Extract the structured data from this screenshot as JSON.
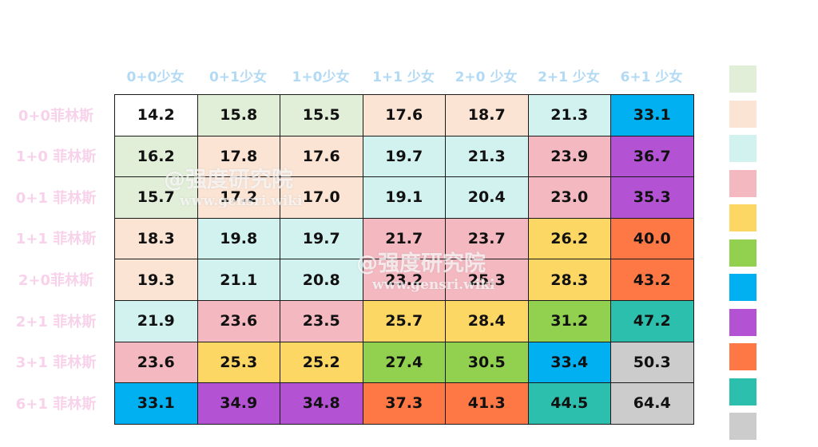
{
  "chart_data": {
    "type": "table",
    "columns": [
      "0+0少女",
      "0+1少女",
      "1+0少女",
      "1+1 少女",
      "2+0 少女",
      "2+1 少女",
      "6+1 少女"
    ],
    "rows": [
      "0+0菲林斯",
      "1+0 菲林斯",
      "0+1 菲林斯",
      "1+1  菲林斯",
      "2+0菲林斯",
      "2+1 菲林斯",
      "3+1 菲林斯",
      "6+1 菲林斯"
    ],
    "values": [
      [
        "14.2",
        "15.8",
        "15.5",
        "17.6",
        "18.7",
        "21.3",
        "33.1"
      ],
      [
        "16.2",
        "17.8",
        "17.6",
        "19.7",
        "21.3",
        "23.9",
        "36.7"
      ],
      [
        "15.7",
        "17.2",
        "17.0",
        "19.1",
        "20.4",
        "23.0",
        "35.3"
      ],
      [
        "18.3",
        "19.8",
        "19.7",
        "21.7",
        "23.7",
        "26.2",
        "40.0"
      ],
      [
        "19.3",
        "21.1",
        "20.8",
        "23.2",
        "25.3",
        "28.3",
        "43.2"
      ],
      [
        "21.9",
        "23.6",
        "23.5",
        "25.7",
        "28.4",
        "31.2",
        "47.2"
      ],
      [
        "23.6",
        "25.3",
        "25.2",
        "27.4",
        "30.5",
        "33.4",
        "50.3"
      ],
      [
        "33.1",
        "34.9",
        "34.8",
        "37.3",
        "41.3",
        "44.5",
        "64.4"
      ]
    ],
    "cell_color_index": [
      [
        -1,
        0,
        0,
        1,
        1,
        2,
        6
      ],
      [
        0,
        1,
        1,
        2,
        2,
        3,
        7
      ],
      [
        0,
        1,
        1,
        2,
        2,
        3,
        7
      ],
      [
        1,
        2,
        2,
        3,
        3,
        4,
        8
      ],
      [
        1,
        2,
        2,
        3,
        3,
        4,
        8
      ],
      [
        2,
        3,
        3,
        4,
        4,
        5,
        9
      ],
      [
        3,
        4,
        4,
        5,
        5,
        6,
        10
      ],
      [
        6,
        7,
        7,
        8,
        8,
        9,
        10
      ]
    ],
    "legend_colors": [
      "#e2efd8",
      "#fbe4d4",
      "#d2f2f0",
      "#f4b8c0",
      "#fdd764",
      "#92d050",
      "#00b0f0",
      "#b452d4",
      "#fe7845",
      "#2cbfad",
      "#cccccc"
    ],
    "base_cell_color": "#ffffff",
    "column_header_color": "#b3daf4",
    "row_header_color": "#f8d2ea"
  },
  "watermarks": [
    {
      "main": "@强度研究院",
      "sub": "www.gensri.wiki"
    },
    {
      "main": "@强度研究院",
      "sub": "www.gensri.wiki"
    }
  ]
}
